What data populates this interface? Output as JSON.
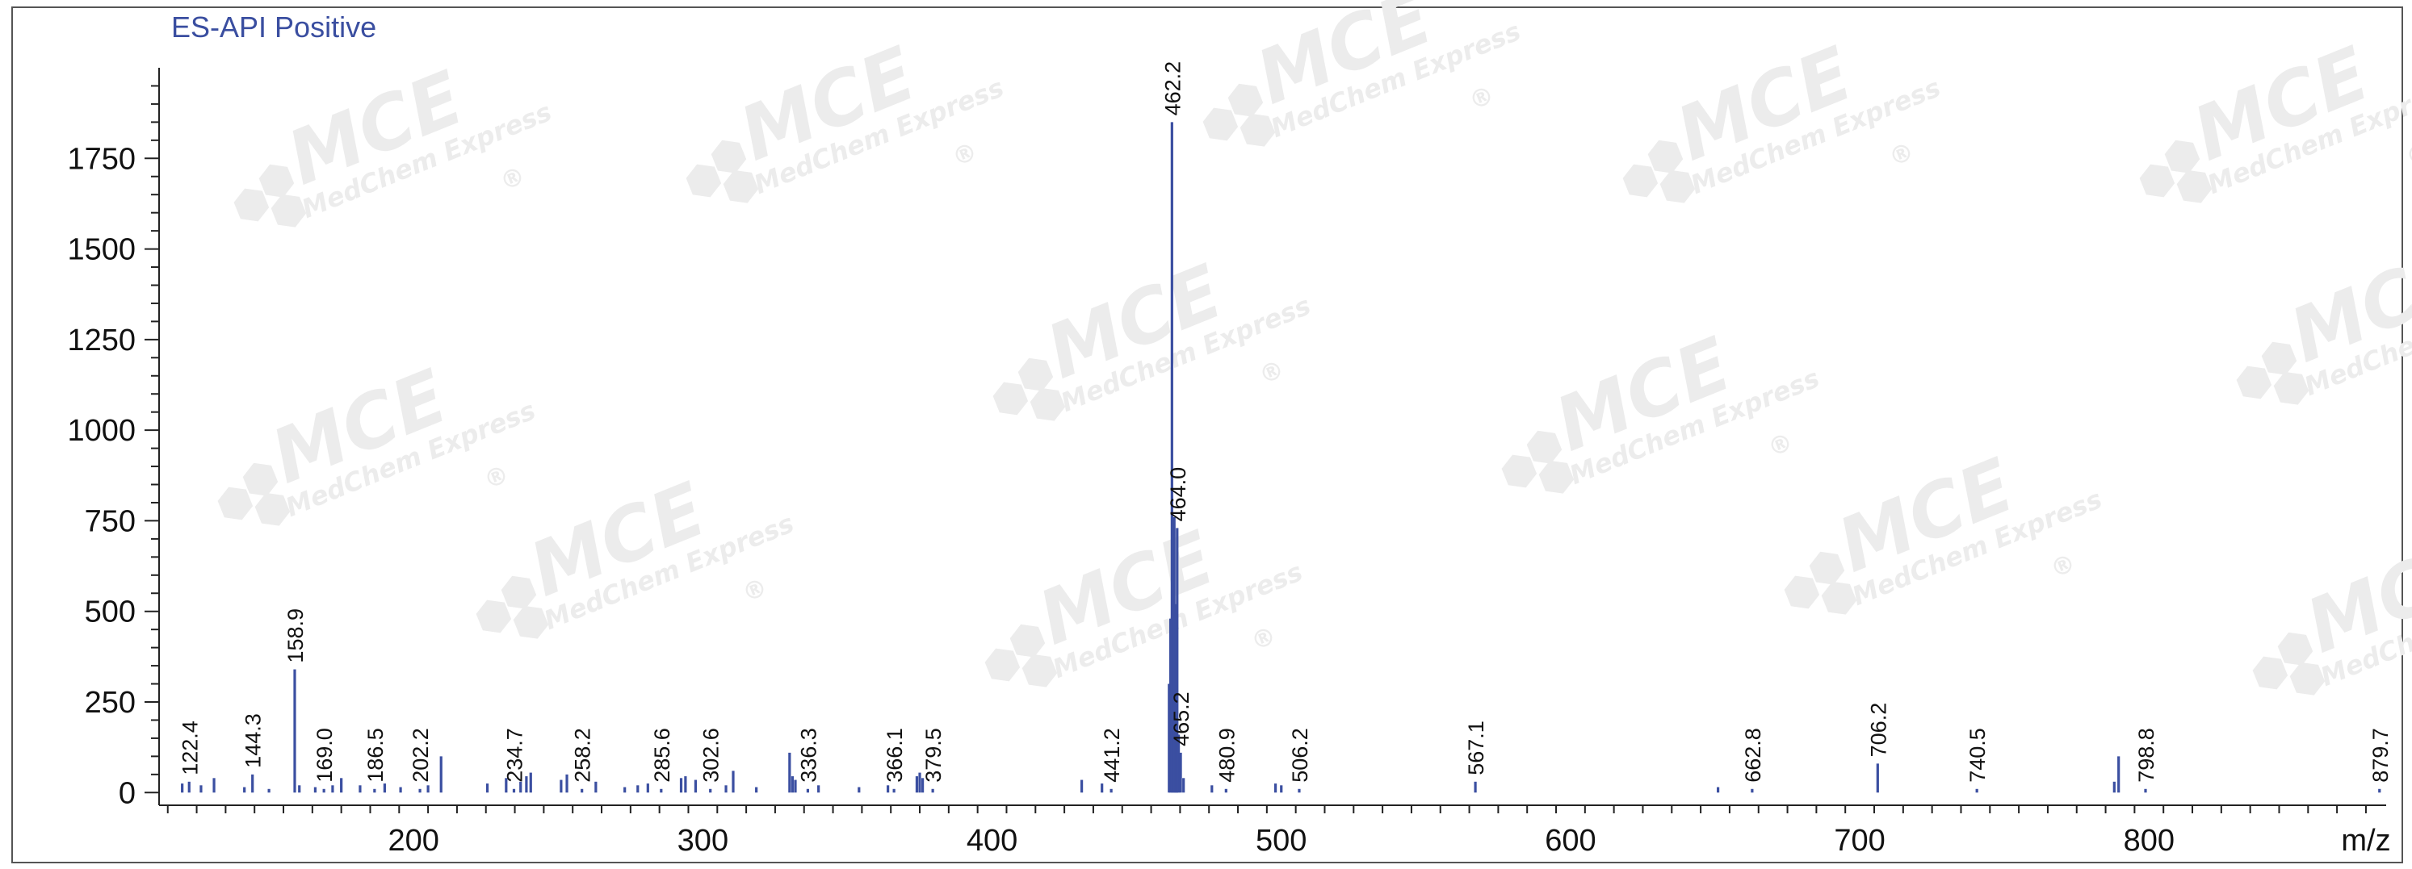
{
  "chart_data": {
    "type": "bar",
    "title": "ES-API Positive",
    "xlabel": "m/z",
    "ylabel": "",
    "xlim": [
      112,
      882
    ],
    "ylim": [
      -35,
      2000
    ],
    "grid": false,
    "x_ticks": [
      200,
      300,
      400,
      500,
      600,
      700,
      800
    ],
    "y_ticks": [
      0,
      250,
      500,
      750,
      1000,
      1250,
      1500,
      1750
    ],
    "labeled_peaks": [
      {
        "mz": 122.4,
        "label": "122.4",
        "intensity": 30
      },
      {
        "mz": 144.3,
        "label": "144.3",
        "intensity": 50
      },
      {
        "mz": 158.9,
        "label": "158.9",
        "intensity": 340
      },
      {
        "mz": 169.0,
        "label": "169.0",
        "intensity": 10
      },
      {
        "mz": 186.5,
        "label": "186.5",
        "intensity": 10
      },
      {
        "mz": 202.2,
        "label": "202.2",
        "intensity": 10
      },
      {
        "mz": 234.7,
        "label": "234.7",
        "intensity": 10
      },
      {
        "mz": 258.2,
        "label": "258.2",
        "intensity": 10
      },
      {
        "mz": 285.6,
        "label": "285.6",
        "intensity": 10
      },
      {
        "mz": 302.6,
        "label": "302.6",
        "intensity": 10
      },
      {
        "mz": 336.3,
        "label": "336.3",
        "intensity": 10
      },
      {
        "mz": 366.1,
        "label": "366.1",
        "intensity": 10
      },
      {
        "mz": 379.5,
        "label": "379.5",
        "intensity": 10
      },
      {
        "mz": 441.2,
        "label": "441.2",
        "intensity": 10
      },
      {
        "mz": 462.2,
        "label": "462.2",
        "intensity": 1850
      },
      {
        "mz": 464.0,
        "label": "464.0",
        "intensity": 730
      },
      {
        "mz": 465.2,
        "label": "465.2",
        "intensity": 110
      },
      {
        "mz": 480.9,
        "label": "480.9",
        "intensity": 10
      },
      {
        "mz": 506.2,
        "label": "506.2",
        "intensity": 10
      },
      {
        "mz": 567.1,
        "label": "567.1",
        "intensity": 30
      },
      {
        "mz": 662.8,
        "label": "662.8",
        "intensity": 10
      },
      {
        "mz": 706.2,
        "label": "706.2",
        "intensity": 80
      },
      {
        "mz": 740.5,
        "label": "740.5",
        "intensity": 10
      },
      {
        "mz": 798.8,
        "label": "798.8",
        "intensity": 10
      },
      {
        "mz": 879.7,
        "label": "879.7",
        "intensity": 10
      }
    ],
    "minor_peaks": [
      {
        "mz": 120.0,
        "intensity": 25
      },
      {
        "mz": 126.5,
        "intensity": 20
      },
      {
        "mz": 131.0,
        "intensity": 40
      },
      {
        "mz": 141.5,
        "intensity": 15
      },
      {
        "mz": 150.0,
        "intensity": 10
      },
      {
        "mz": 160.5,
        "intensity": 20
      },
      {
        "mz": 166.0,
        "intensity": 15
      },
      {
        "mz": 172.0,
        "intensity": 20
      },
      {
        "mz": 175.0,
        "intensity": 40
      },
      {
        "mz": 181.5,
        "intensity": 20
      },
      {
        "mz": 190.0,
        "intensity": 25
      },
      {
        "mz": 195.5,
        "intensity": 15
      },
      {
        "mz": 205.0,
        "intensity": 20
      },
      {
        "mz": 209.5,
        "intensity": 100
      },
      {
        "mz": 225.5,
        "intensity": 25
      },
      {
        "mz": 232.0,
        "intensity": 40
      },
      {
        "mz": 237.0,
        "intensity": 30
      },
      {
        "mz": 239.0,
        "intensity": 45
      },
      {
        "mz": 240.5,
        "intensity": 55
      },
      {
        "mz": 251.0,
        "intensity": 35
      },
      {
        "mz": 253.0,
        "intensity": 50
      },
      {
        "mz": 263.0,
        "intensity": 30
      },
      {
        "mz": 273.0,
        "intensity": 15
      },
      {
        "mz": 277.5,
        "intensity": 20
      },
      {
        "mz": 281.0,
        "intensity": 25
      },
      {
        "mz": 292.5,
        "intensity": 40
      },
      {
        "mz": 294.0,
        "intensity": 45
      },
      {
        "mz": 297.5,
        "intensity": 35
      },
      {
        "mz": 308.0,
        "intensity": 20
      },
      {
        "mz": 310.5,
        "intensity": 60
      },
      {
        "mz": 318.5,
        "intensity": 15
      },
      {
        "mz": 330.0,
        "intensity": 110
      },
      {
        "mz": 331.0,
        "intensity": 45
      },
      {
        "mz": 332.0,
        "intensity": 35
      },
      {
        "mz": 340.0,
        "intensity": 20
      },
      {
        "mz": 354.0,
        "intensity": 15
      },
      {
        "mz": 364.0,
        "intensity": 20
      },
      {
        "mz": 374.0,
        "intensity": 45
      },
      {
        "mz": 375.0,
        "intensity": 55
      },
      {
        "mz": 376.0,
        "intensity": 40
      },
      {
        "mz": 431.0,
        "intensity": 35
      },
      {
        "mz": 438.0,
        "intensity": 25
      },
      {
        "mz": 461.2,
        "intensity": 300
      },
      {
        "mz": 461.7,
        "intensity": 480
      },
      {
        "mz": 462.6,
        "intensity": 560
      },
      {
        "mz": 463.0,
        "intensity": 760
      },
      {
        "mz": 463.4,
        "intensity": 520
      },
      {
        "mz": 463.8,
        "intensity": 380
      },
      {
        "mz": 464.5,
        "intensity": 160
      },
      {
        "mz": 466.2,
        "intensity": 40
      },
      {
        "mz": 476.0,
        "intensity": 20
      },
      {
        "mz": 498.0,
        "intensity": 25
      },
      {
        "mz": 500.0,
        "intensity": 20
      },
      {
        "mz": 651.0,
        "intensity": 15
      },
      {
        "mz": 788.0,
        "intensity": 30
      },
      {
        "mz": 789.5,
        "intensity": 100
      }
    ]
  },
  "colors": {
    "peak": "#3b4fa1",
    "title": "#3a4ea0",
    "axis": "#222222",
    "watermark": "#ececec"
  },
  "watermark": {
    "brand": "MCE",
    "company": "MedChem Express",
    "registered": "®"
  }
}
